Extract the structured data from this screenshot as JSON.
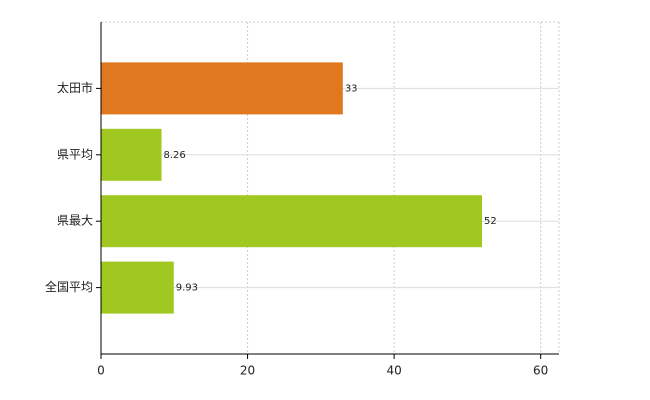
{
  "chart_data": {
    "type": "hbar",
    "categories": [
      "太田市",
      "県平均",
      "県最大",
      "全国平均"
    ],
    "values": [
      33,
      8.26,
      52,
      9.93
    ],
    "colors": [
      "#e07820",
      "#a0c820",
      "#a0c820",
      "#a0c820"
    ],
    "xlim": [
      0,
      62.5
    ],
    "xticks": [
      0,
      20,
      40,
      60
    ],
    "grid": true
  }
}
